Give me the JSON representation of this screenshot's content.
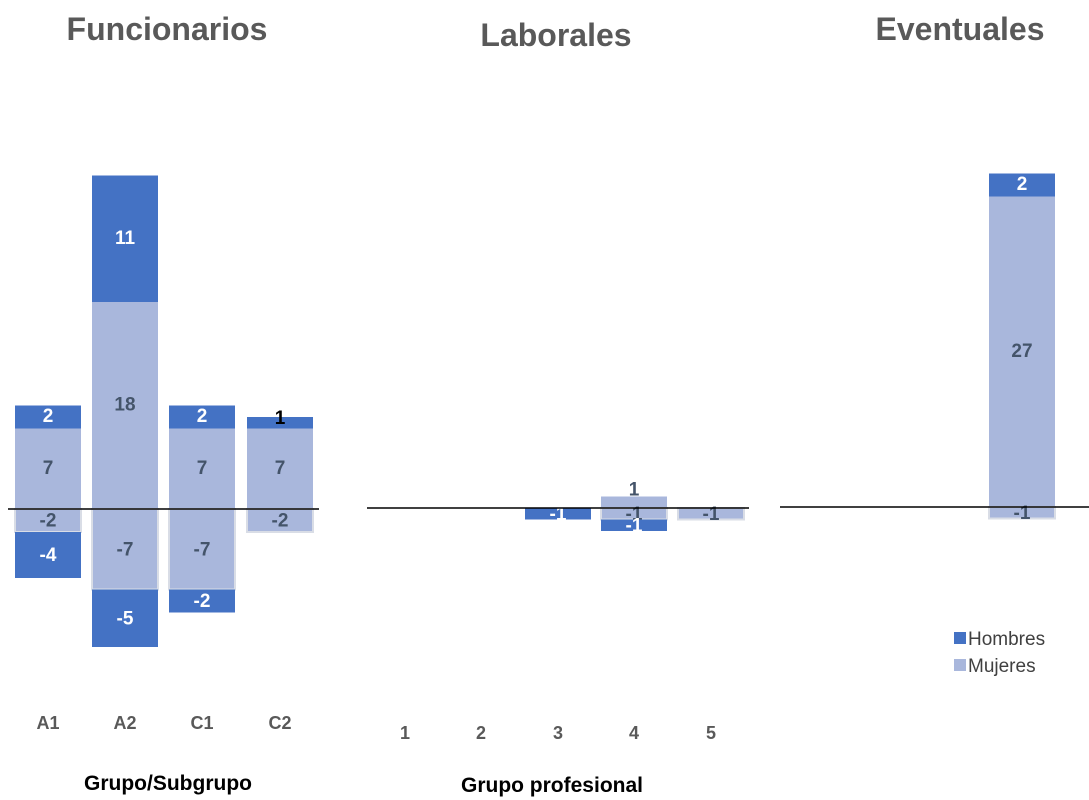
{
  "colors": {
    "hombres": "#4472c4",
    "mujeres": "#a9b7dc",
    "label_dark": "#44546a",
    "label_light": "#ffffff",
    "baseline": "#000000"
  },
  "legend": {
    "hombres": "Hombres",
    "mujeres": "Mujeres"
  },
  "chart_data": [
    {
      "type": "bar",
      "stacked": true,
      "title": "Funcionarios",
      "xlabel": "Grupo/Subgrupo",
      "categories": [
        "A1",
        "A2",
        "C1",
        "C2"
      ],
      "series": [
        {
          "name": "Mujeres",
          "positive": [
            7,
            18,
            7,
            7
          ],
          "negative": [
            -2,
            -7,
            -7,
            -2
          ]
        },
        {
          "name": "Hombres",
          "positive": [
            2,
            11,
            2,
            1
          ],
          "negative": [
            -4,
            -5,
            -2,
            0
          ]
        }
      ]
    },
    {
      "type": "bar",
      "stacked": true,
      "title": "Laborales",
      "xlabel": "Grupo profesional",
      "categories": [
        "1",
        "2",
        "3",
        "4",
        "5"
      ],
      "series": [
        {
          "name": "Mujeres",
          "positive": [
            0,
            0,
            0,
            1,
            0
          ],
          "negative": [
            0,
            0,
            0,
            -1,
            -1
          ]
        },
        {
          "name": "Hombres",
          "positive": [
            0,
            0,
            0,
            0,
            0
          ],
          "negative": [
            0,
            0,
            -1,
            -1,
            0
          ]
        }
      ]
    },
    {
      "type": "bar",
      "stacked": true,
      "title": "Eventuales",
      "xlabel": "",
      "categories": [
        ""
      ],
      "series": [
        {
          "name": "Mujeres",
          "positive": [
            27
          ],
          "negative": [
            -1
          ]
        },
        {
          "name": "Hombres",
          "positive": [
            2
          ],
          "negative": [
            0
          ]
        }
      ]
    }
  ]
}
